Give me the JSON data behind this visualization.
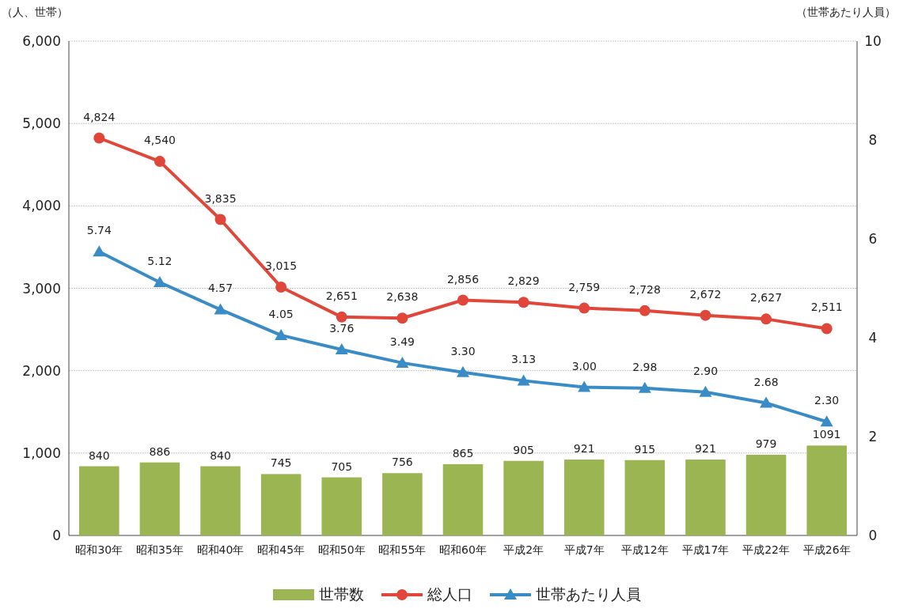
{
  "chart_data": {
    "type": "bar",
    "categories": [
      "昭和30年",
      "昭和35年",
      "昭和40年",
      "昭和45年",
      "昭和50年",
      "昭和55年",
      "昭和60年",
      "平成2年",
      "平成7年",
      "平成12年",
      "平成17年",
      "平成22年",
      "平成26年"
    ],
    "ylabel": "（人、世帯）",
    "y2label": "（世帯あたり人員）",
    "ylim": [
      0,
      6000
    ],
    "yticks": [
      {
        "value": 0,
        "label": "0"
      },
      {
        "value": 1000,
        "label": "1,000"
      },
      {
        "value": 2000,
        "label": "2,000"
      },
      {
        "value": 3000,
        "label": "3,000"
      },
      {
        "value": 4000,
        "label": "4,000"
      },
      {
        "value": 5000,
        "label": "5,000"
      },
      {
        "value": 6000,
        "label": "6,000"
      }
    ],
    "y2lim": [
      0,
      10
    ],
    "y2ticks": [
      0,
      2,
      4,
      6,
      8,
      10
    ],
    "grid": "y",
    "legend": "bottom",
    "series": [
      {
        "name": "世帯数",
        "axis": "y",
        "color": "#9bb552",
        "values": [
          840,
          886,
          840,
          745,
          705,
          756,
          865,
          905,
          921,
          915,
          921,
          979,
          1091
        ],
        "value_labels": [
          "840",
          "886",
          "840",
          "745",
          "705",
          "756",
          "865",
          "905",
          "921",
          "915",
          "921",
          "979",
          "1091"
        ]
      },
      {
        "name": "総人口",
        "type": "line",
        "axis": "y",
        "color": "#e0473a",
        "marker": "circle",
        "values": [
          4824,
          4540,
          3835,
          3015,
          2651,
          2638,
          2856,
          2829,
          2759,
          2728,
          2672,
          2627,
          2511
        ],
        "value_labels": [
          "4,824",
          "4,540",
          "3,835",
          "3,015",
          "2,651",
          "2,638",
          "2,856",
          "2,829",
          "2,759",
          "2,728",
          "2,672",
          "2,627",
          "2,511"
        ]
      },
      {
        "name": "世帯あたり人員",
        "type": "line",
        "axis": "y2",
        "color": "#3a8cc6",
        "marker": "triangle",
        "values": [
          5.74,
          5.12,
          4.57,
          4.05,
          3.76,
          3.49,
          3.3,
          3.13,
          3.0,
          2.98,
          2.9,
          2.68,
          2.3
        ],
        "value_labels": [
          "5.74",
          "5.12",
          "4.57",
          "4.05",
          "3.76",
          "3.49",
          "3.30",
          "3.13",
          "3.00",
          "2.98",
          "2.90",
          "2.68",
          "2.30"
        ]
      }
    ]
  }
}
